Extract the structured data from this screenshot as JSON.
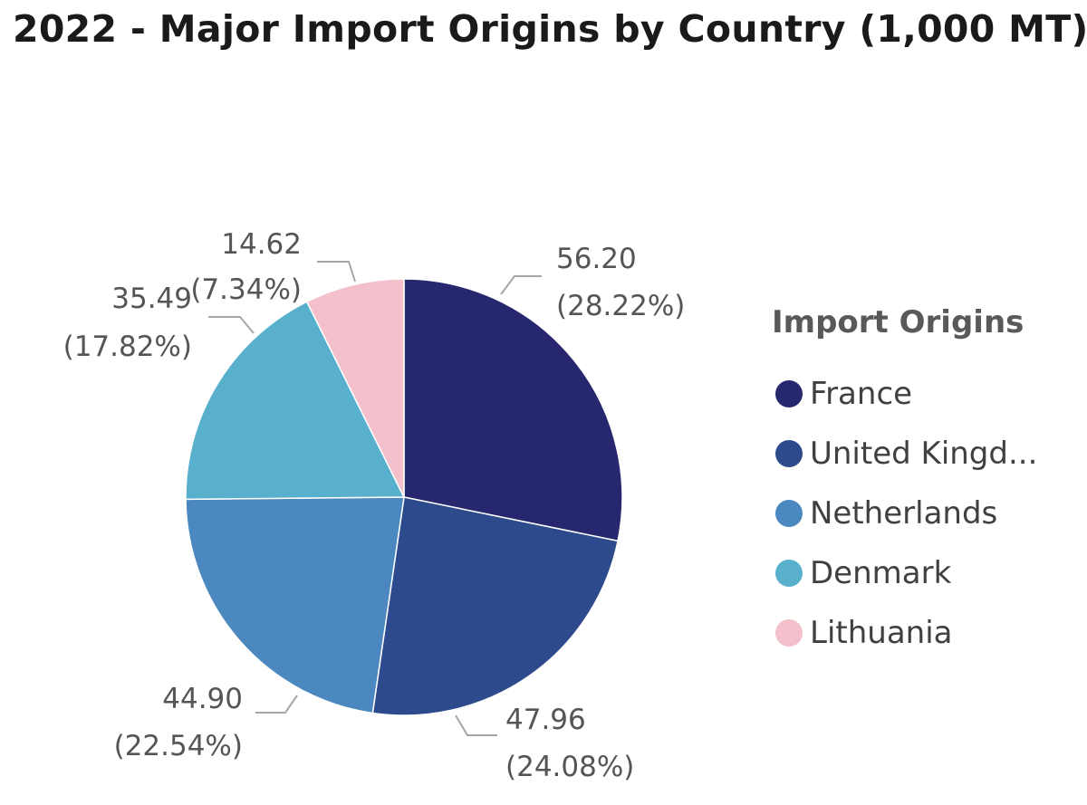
{
  "chart_data": {
    "type": "pie",
    "title": "2022 - Major Import Origins by Country (1,000 MT)",
    "legend": {
      "title": "Import Origins",
      "placement": "right",
      "entries": [
        "France",
        "United Kingd...",
        "Netherlands",
        "Denmark",
        "Lithuania"
      ]
    },
    "slices": [
      {
        "label": "France",
        "value": 56.2,
        "value_label": "56.20",
        "percent_label": "(28.22%)",
        "color": "#26276e"
      },
      {
        "label": "United Kingd...",
        "value": 47.96,
        "value_label": "47.96",
        "percent_label": "(24.08%)",
        "color": "#2c4a8c"
      },
      {
        "label": "Netherlands",
        "value": 44.9,
        "value_label": "44.90",
        "percent_label": "(22.54%)",
        "color": "#4b88bf"
      },
      {
        "label": "Denmark",
        "value": 35.49,
        "value_label": "35.49",
        "percent_label": "(17.82%)",
        "color": "#59b0cd"
      },
      {
        "label": "Lithuania",
        "value": 14.62,
        "value_label": "14.62",
        "percent_label": "(7.34%)",
        "color": "#f3c0cb"
      }
    ]
  }
}
